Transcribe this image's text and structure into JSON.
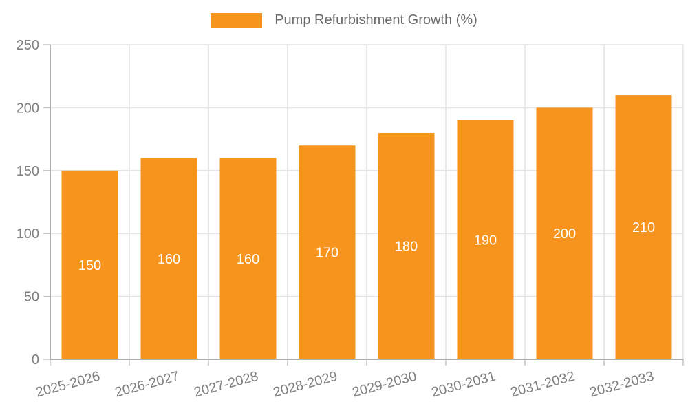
{
  "legend": {
    "label": "Pump Refurbishment Growth (%)"
  },
  "colors": {
    "bar": "#F7941E",
    "grid": "#E3E3E3",
    "axis": "#B0B0B0",
    "tick": "#C4C4C4",
    "tick_text": "#808080",
    "legend_text": "#6B6B6B",
    "value_label": "#FFFFFF",
    "background": "#FFFFFF"
  },
  "chart_data": {
    "type": "bar",
    "title": "Pump Refurbishment Growth (%)",
    "categories": [
      "2025-2026",
      "2026-2027",
      "2027-2028",
      "2028-2029",
      "2029-2030",
      "2030-2031",
      "2031-2032",
      "2032-2033"
    ],
    "values": [
      150,
      160,
      160,
      170,
      180,
      190,
      200,
      210
    ],
    "xlabel": "",
    "ylabel": "",
    "ylim": [
      0,
      250
    ],
    "yticks": [
      0,
      50,
      100,
      150,
      200,
      250
    ],
    "grid": true,
    "legend_position": "top-center",
    "value_labels": "inside-center",
    "x_label_rotation_deg": -15
  }
}
